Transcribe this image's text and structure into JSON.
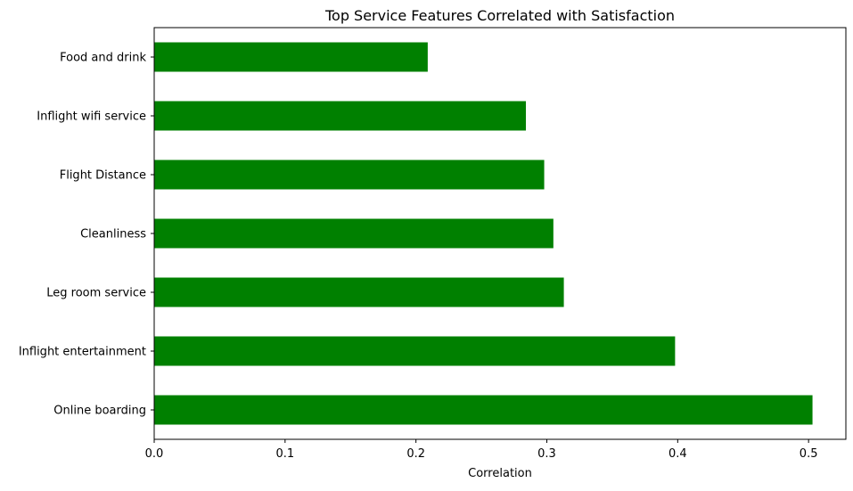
{
  "chart_data": {
    "type": "bar",
    "orientation": "horizontal",
    "title": "Top Service Features Correlated with Satisfaction",
    "xlabel": "Correlation",
    "ylabel": "",
    "categories": [
      "Online boarding",
      "Inflight entertainment",
      "Leg room service",
      "Cleanliness",
      "Flight Distance",
      "Inflight wifi service",
      "Food and drink"
    ],
    "values": [
      0.503,
      0.398,
      0.313,
      0.305,
      0.298,
      0.284,
      0.209
    ],
    "xlim": [
      0,
      0.5285
    ],
    "xticks": [
      0.0,
      0.1,
      0.2,
      0.3,
      0.4,
      0.5
    ],
    "xtick_labels": [
      "0.0",
      "0.1",
      "0.2",
      "0.3",
      "0.4",
      "0.5"
    ],
    "bar_color": "#008000",
    "grid": false,
    "legend": "none"
  }
}
